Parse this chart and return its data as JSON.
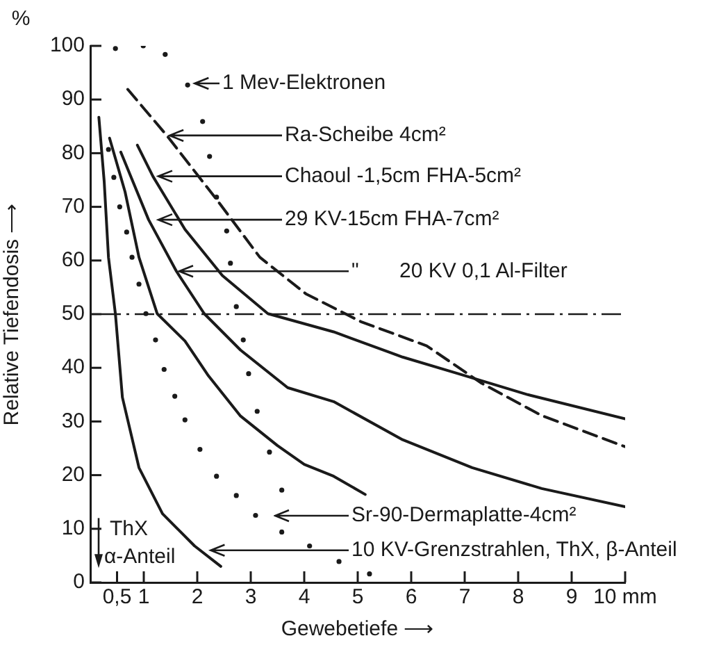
{
  "chart_data": {
    "type": "line",
    "xlabel": "Gewebetiefe ⟶",
    "ylabel": "Relative Tiefendosis ⟶",
    "xlim": [
      0,
      10
    ],
    "ylim": [
      0,
      100
    ],
    "xticks": [
      {
        "value": 0.5,
        "label": "0,5"
      },
      1,
      2,
      3,
      4,
      5,
      6,
      7,
      8,
      9,
      {
        "value": 10,
        "label": "10 mm"
      }
    ],
    "yticks": [
      0,
      10,
      20,
      30,
      40,
      50,
      60,
      70,
      80,
      90,
      100
    ],
    "grid": false,
    "legend": false,
    "marker": "none",
    "ref_lines": [
      {
        "axis": "y",
        "value": 50,
        "line_style": "dashed",
        "color": "#1a1a1a"
      }
    ],
    "series": [
      {
        "type": "scatter",
        "marker": "circle",
        "color": "#1a1a1a",
        "x": [
          0.47,
          0.99,
          1.4,
          1.82,
          2.1,
          2.23,
          2.36,
          2.55,
          2.62,
          2.73,
          2.86,
          2.96,
          3.12,
          3.35,
          3.58,
          4.1,
          4.65,
          5.22
        ],
        "values": [
          99.5,
          100,
          98.4,
          92.7,
          85.9,
          79.4,
          71.8,
          65.5,
          59.5,
          51.4,
          45.2,
          38.9,
          31.9,
          24.3,
          17.2,
          6.8,
          3.9,
          1.6
        ]
      },
      {
        "type": "line",
        "line_style": "dashed",
        "color": "#1a1a1a",
        "x": [
          0.7,
          1.43,
          2.39,
          3.17,
          4.03,
          5.06,
          6.29,
          7.32,
          8.44,
          10
        ],
        "values": [
          91.9,
          83.3,
          71,
          60.6,
          53.8,
          48.6,
          44.1,
          37.1,
          31.1,
          25.3
        ]
      },
      {
        "type": "line",
        "color": "#1a1a1a",
        "x": [
          0.88,
          1.17,
          1.77,
          2.47,
          3.32,
          4.55,
          5.84,
          6.88,
          8.18,
          10
        ],
        "values": [
          81.5,
          75.7,
          65.8,
          57.2,
          50.1,
          46.7,
          42,
          38.9,
          35,
          30.5
        ]
      },
      {
        "type": "line",
        "color": "#1a1a1a",
        "x": [
          0.57,
          1.09,
          1.61,
          2.13,
          2.81,
          3.69,
          4.55,
          5.84,
          7.14,
          8.44,
          10
        ],
        "values": [
          80.2,
          67.6,
          58,
          50.1,
          43.3,
          36.3,
          33.7,
          26.6,
          21.4,
          17.5,
          14.1
        ]
      },
      {
        "type": "line",
        "color": "#1a1a1a",
        "x": [
          0.36,
          0.65,
          0.91,
          1.25,
          1.77,
          2.21,
          2.81,
          3.5,
          4,
          4.55,
          5.14
        ],
        "values": [
          82.8,
          72.8,
          60.6,
          50.1,
          45,
          38.5,
          31,
          25.5,
          22,
          19.8,
          16.4
        ]
      },
      {
        "type": "scatter",
        "marker": "circle",
        "color": "#1a1a1a",
        "x": [
          0.34,
          0.44,
          0.55,
          0.68,
          0.78,
          0.91,
          1.04,
          1.22,
          1.38,
          1.58,
          1.77,
          2.05,
          2.36,
          2.73,
          3.09,
          3.58
        ],
        "values": [
          80.7,
          75.5,
          70,
          65.3,
          60.6,
          55.6,
          50.1,
          45.2,
          39.7,
          34.7,
          30.3,
          24.8,
          19.8,
          16.2,
          12.5,
          9.4
        ]
      },
      {
        "type": "line",
        "color": "#1a1a1a",
        "x": [
          0.16,
          0.26,
          0.34,
          0.47,
          0.6,
          0.91,
          1.35,
          1.95,
          2.44
        ],
        "values": [
          86.7,
          74.7,
          60.6,
          50,
          34.5,
          21.4,
          12.8,
          6.8,
          3
        ]
      }
    ],
    "annotations": [
      {
        "text": "1 Mev-Elektronen",
        "x": 1.9,
        "y": 93
      },
      {
        "text": "Ra-Scheibe 4cm²",
        "x": 1.43,
        "y": 83.3
      },
      {
        "text": "Chaoul -1,5cm FHA-5cm²",
        "x": 1.22,
        "y": 75.7
      },
      {
        "text": "29 KV-15cm FHA-7cm²",
        "x": 1.22,
        "y": 67.6
      },
      {
        "text": "\"       20 KV 0,1 Al-Filter",
        "x": 1.61,
        "y": 58
      },
      {
        "text": "10 KV-Grenzstrahlen, ThX, β-Anteil",
        "x": 2.2,
        "y": 6
      },
      "%",
      "ThX α-Anteil",
      "Sr-90-Dermaplatte-4cm²"
    ]
  }
}
